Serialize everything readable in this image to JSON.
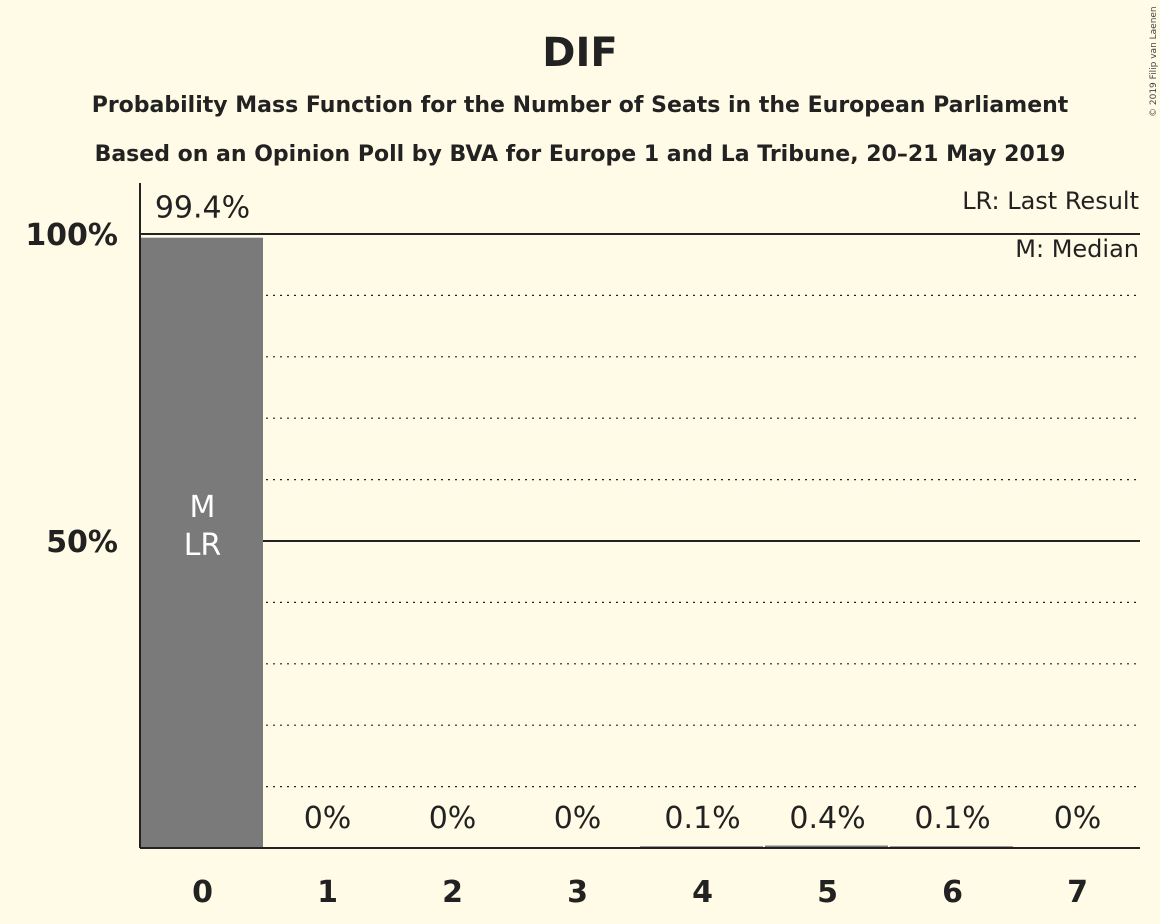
{
  "chart_data": {
    "type": "bar",
    "title": "DIF",
    "subtitle_lines": [
      "Probability Mass Function for the Number of Seats in the European Parliament",
      "Based on an Opinion Poll by BVA for Europe 1 and La Tribune, 20–21 May 2019"
    ],
    "categories": [
      "0",
      "1",
      "2",
      "3",
      "4",
      "5",
      "6",
      "7"
    ],
    "values": [
      99.4,
      0,
      0,
      0,
      0.1,
      0.4,
      0.1,
      0
    ],
    "value_labels": [
      "99.4%",
      "0%",
      "0%",
      "0%",
      "0.1%",
      "0.4%",
      "0.1%",
      "0%"
    ],
    "ylim": [
      0,
      100
    ],
    "yticks": [
      {
        "value": 50,
        "label": "50%"
      },
      {
        "value": 100,
        "label": "100%"
      }
    ],
    "minor_grid_step": 10,
    "bar_annotations": [
      {
        "category": "0",
        "lines": [
          "M",
          "LR"
        ]
      }
    ],
    "legend": [
      "LR: Last Result",
      "M: Median"
    ],
    "legend_position": "top-right",
    "credit": "© 2019 Filip van Laenen",
    "bar_color": "#7a7a7a",
    "background": "#fffbe6"
  }
}
